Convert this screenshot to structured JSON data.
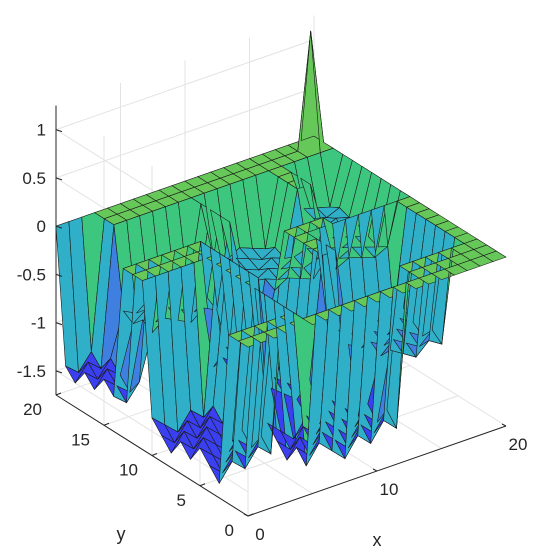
{
  "chart_data": {
    "type": "surface",
    "title": "",
    "xlabel": "x",
    "ylabel": "y",
    "zlabel": "",
    "xlim": [
      0,
      20
    ],
    "ylim": [
      0,
      20
    ],
    "zlim": [
      -1.75,
      1.25
    ],
    "x_ticks": [
      "0",
      "10",
      "20"
    ],
    "y_ticks": [
      "0",
      "5",
      "10",
      "15",
      "20"
    ],
    "z_ticks": [
      "-1.5",
      "-1",
      "-0.5",
      "0",
      "0.5",
      "1"
    ],
    "x_tick_values": [
      0,
      10,
      20
    ],
    "y_tick_values": [
      0,
      5,
      10,
      15,
      20
    ],
    "z_tick_values": [
      -1.5,
      -1,
      -0.5,
      0,
      0.5,
      1
    ],
    "grid": true,
    "grid_size": 20,
    "baseline_z": 0,
    "spike": {
      "x": 19,
      "y": 19,
      "z": 1.2
    },
    "depressions": [
      {
        "xmin": 0,
        "xmax": 2,
        "ymin": 14,
        "ymax": 19,
        "depth": -1.5
      },
      {
        "xmin": 0,
        "xmax": 4,
        "ymin": 3,
        "ymax": 10,
        "depth": -1.6
      },
      {
        "xmin": 3,
        "xmax": 8,
        "ymin": 14,
        "ymax": 17,
        "depth": -0.9
      },
      {
        "xmin": 6,
        "xmax": 13,
        "ymin": 2,
        "ymax": 6,
        "depth": -1.7
      },
      {
        "xmin": 7,
        "xmax": 10,
        "ymin": 7,
        "ymax": 13,
        "depth": -1.4
      },
      {
        "xmin": 10,
        "xmax": 14,
        "ymin": 12,
        "ymax": 17,
        "depth": -0.7
      },
      {
        "xmin": 13,
        "xmax": 18,
        "ymin": 4,
        "ymax": 9,
        "depth": -1.1
      },
      {
        "xmin": 15,
        "xmax": 19,
        "ymin": 11,
        "ymax": 14,
        "depth": -0.6
      },
      {
        "xmin": 17,
        "xmax": 19,
        "ymin": 14,
        "ymax": 17,
        "depth": -0.5
      }
    ],
    "colormap": [
      "#3a3ff0",
      "#3f7fe0",
      "#30b0c8",
      "#3dc77e",
      "#67c85a"
    ]
  }
}
